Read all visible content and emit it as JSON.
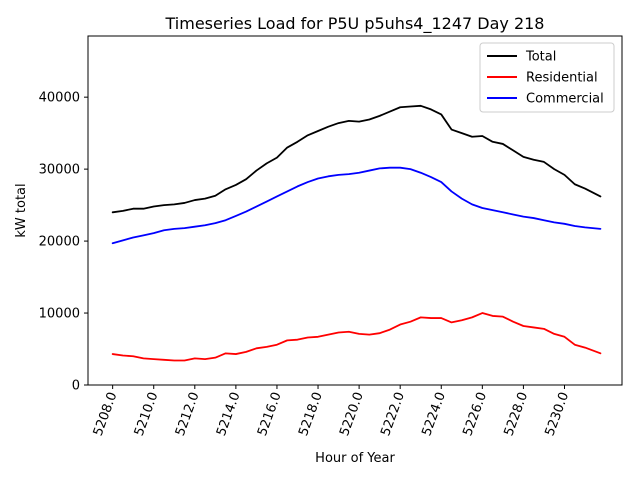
{
  "chart_data": {
    "type": "line",
    "title": "Timeseries Load for P5U p5uhs4_1247  Day 218",
    "xlabel": "Hour of Year",
    "ylabel": "kW total",
    "xlim": [
      5206.8,
      5232.8
    ],
    "ylim": [
      0,
      48500
    ],
    "x_ticks": [
      5208,
      5210,
      5212,
      5214,
      5216,
      5218,
      5220,
      5222,
      5224,
      5226,
      5228,
      5230
    ],
    "x_tick_labels": [
      "5208.0",
      "5210.0",
      "5212.0",
      "5214.0",
      "5216.0",
      "5218.0",
      "5220.0",
      "5222.0",
      "5224.0",
      "5226.0",
      "5228.0",
      "5230.0"
    ],
    "y_ticks": [
      0,
      10000,
      20000,
      30000,
      40000
    ],
    "y_tick_labels": [
      "0",
      "10000",
      "20000",
      "30000",
      "40000"
    ],
    "legend_position": "top-right",
    "x": [
      5208.0,
      5208.5,
      5209.0,
      5209.5,
      5210.0,
      5210.5,
      5211.0,
      5211.5,
      5212.0,
      5212.5,
      5213.0,
      5213.5,
      5214.0,
      5214.5,
      5215.0,
      5215.5,
      5216.0,
      5216.5,
      5217.0,
      5217.5,
      5218.0,
      5218.5,
      5219.0,
      5219.5,
      5220.0,
      5220.5,
      5221.0,
      5221.5,
      5222.0,
      5222.5,
      5223.0,
      5223.5,
      5224.0,
      5224.5,
      5225.0,
      5225.5,
      5226.0,
      5226.5,
      5227.0,
      5227.5,
      5228.0,
      5228.5,
      5229.0,
      5229.5,
      5230.0,
      5230.5,
      5231.0,
      5231.75
    ],
    "series": [
      {
        "name": "Total",
        "color": "#000000",
        "values": [
          24000,
          24200,
          24500,
          24500,
          24800,
          25000,
          25100,
          25300,
          25700,
          25900,
          26300,
          27200,
          27800,
          28600,
          29800,
          30800,
          31600,
          33000,
          33800,
          34700,
          35300,
          35900,
          36400,
          36700,
          36600,
          36900,
          37400,
          38000,
          38600,
          38700,
          38800,
          38300,
          37600,
          35500,
          35000,
          34500,
          34600,
          33800,
          33500,
          32600,
          31700,
          31300,
          31000,
          30000,
          29200,
          27900,
          27300,
          26200
        ]
      },
      {
        "name": "Residential",
        "color": "#ff0000",
        "values": [
          4300,
          4100,
          4000,
          3700,
          3600,
          3500,
          3400,
          3400,
          3700,
          3600,
          3800,
          4400,
          4300,
          4600,
          5100,
          5300,
          5600,
          6200,
          6300,
          6600,
          6700,
          7000,
          7300,
          7400,
          7100,
          7000,
          7200,
          7700,
          8400,
          8800,
          9400,
          9300,
          9300,
          8700,
          9000,
          9400,
          10000,
          9600,
          9500,
          8800,
          8200,
          8000,
          7800,
          7100,
          6700,
          5600,
          5200,
          4400
        ]
      },
      {
        "name": "Commercial",
        "color": "#0000ff",
        "values": [
          19700,
          20100,
          20500,
          20800,
          21100,
          21500,
          21700,
          21800,
          22000,
          22200,
          22500,
          22900,
          23500,
          24100,
          24800,
          25500,
          26200,
          26900,
          27600,
          28200,
          28700,
          29000,
          29200,
          29300,
          29500,
          29800,
          30100,
          30200,
          30200,
          30000,
          29500,
          28900,
          28200,
          26900,
          25900,
          25100,
          24600,
          24300,
          24000,
          23700,
          23400,
          23200,
          22900,
          22600,
          22400,
          22100,
          21900,
          21700
        ]
      }
    ]
  }
}
